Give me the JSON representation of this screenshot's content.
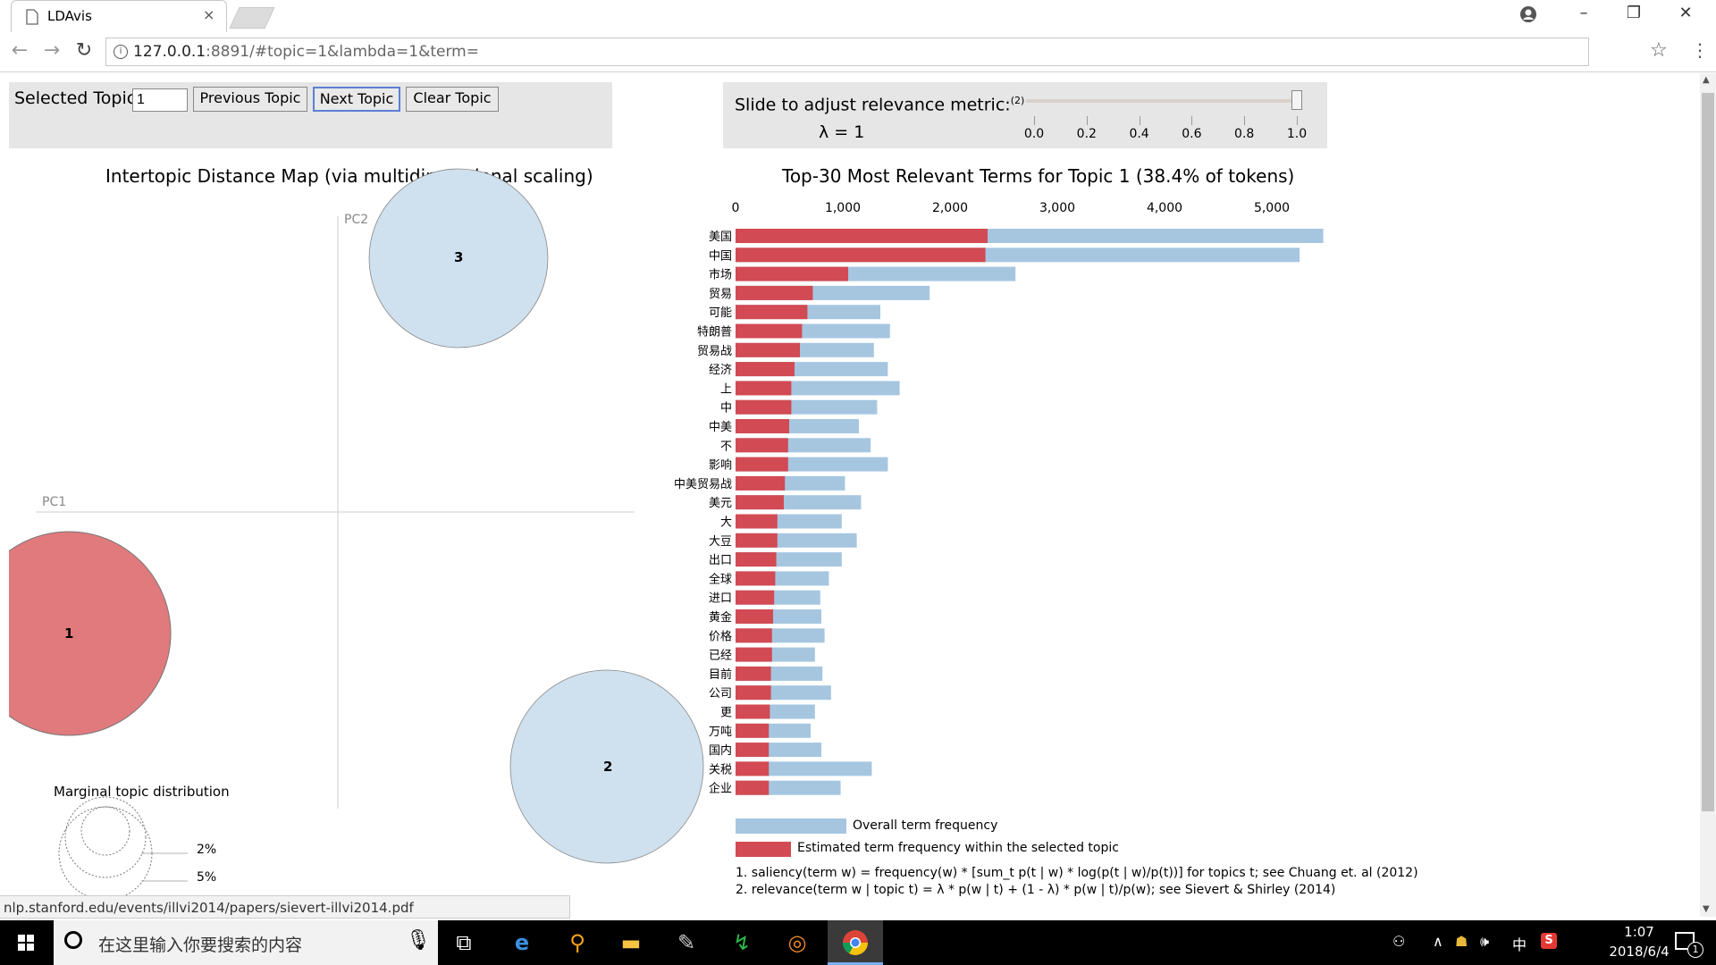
{
  "browser": {
    "tab_title": "LDAvis",
    "tab_close": "×",
    "url_host": "127.0.0.1",
    "url_rest": ":8891/#topic=1&lambda=1&term=",
    "window_controls": [
      "minimize-icon",
      "restore-icon",
      "close-icon"
    ]
  },
  "controls": {
    "selected_topic_label": "Selected Topic:",
    "selected_topic_value": "1",
    "prev_label": "Previous Topic",
    "next_label": "Next Topic",
    "clear_label": "Clear Topic",
    "slider_label": "Slide to adjust relevance metric:",
    "slider_footnote": "(2)",
    "lambda_text": "λ = 1",
    "slider_ticks": [
      "0.0",
      "0.2",
      "0.4",
      "0.6",
      "0.8",
      "1.0"
    ],
    "slider_value": 1.0
  },
  "mds": {
    "title": "Intertopic Distance Map (via multidimensional scaling)",
    "pc1": "PC1",
    "pc2": "PC2",
    "topics": [
      {
        "label": "1",
        "selected": true
      },
      {
        "label": "2",
        "selected": false
      },
      {
        "label": "3",
        "selected": false
      }
    ],
    "marginal_title": "Marginal topic distribution",
    "marginal_labels": [
      "2%",
      "5%"
    ]
  },
  "terms": {
    "title": "Top-30 Most Relevant Terms for Topic 1 (38.4% of tokens)",
    "ticks": [
      "0",
      "1,000",
      "2,000",
      "3,000",
      "4,000",
      "5,000"
    ],
    "legend_overall": "Overall term frequency",
    "legend_topic": "Estimated term frequency within the selected topic",
    "note1": "1. saliency(term w) = frequency(w) * [sum_t p(t | w) * log(p(t | w)/p(t))] for topics t; see Chuang et. al (2012)",
    "note2": "2. relevance(term w | topic t) = λ * p(w | t) + (1 - λ) * p(w | t)/p(w); see Sievert & Shirley (2014)"
  },
  "chart_data": {
    "type": "bar",
    "title": "Top-30 Most Relevant Terms for Topic 1 (38.4% of tokens)",
    "xlim": [
      0,
      5500
    ],
    "categories": [
      "美国",
      "中国",
      "市场",
      "贸易",
      "可能",
      "特朗普",
      "贸易战",
      "经济",
      "上",
      "中",
      "中美",
      "不",
      "影响",
      "中美贸易战",
      "美元",
      "大",
      "大豆",
      "出口",
      "全球",
      "进口",
      "黄金",
      "价格",
      "已经",
      "目前",
      "公司",
      "更",
      "万吨",
      "国内",
      "关税",
      "企业"
    ],
    "series": [
      {
        "name": "Overall term frequency",
        "values": [
          5480,
          5260,
          2610,
          1810,
          1350,
          1440,
          1290,
          1420,
          1530,
          1320,
          1150,
          1260,
          1420,
          1020,
          1170,
          990,
          1130,
          990,
          870,
          790,
          800,
          830,
          740,
          810,
          890,
          740,
          700,
          800,
          1270,
          980
        ]
      },
      {
        "name": "Estimated term frequency within the selected topic",
        "values": [
          2350,
          2330,
          1050,
          720,
          670,
          620,
          600,
          550,
          520,
          520,
          500,
          490,
          490,
          460,
          450,
          390,
          390,
          380,
          370,
          360,
          350,
          340,
          340,
          330,
          330,
          320,
          310,
          310,
          310,
          310
        ]
      }
    ],
    "colors": {
      "overall": "#a6c6e0",
      "topic": "#d24a53"
    }
  },
  "status_url": "nlp.stanford.edu/events/illvi2014/papers/sievert-illvi2014.pdf",
  "taskbar": {
    "search_placeholder": "在这里输入你要搜索的内容",
    "ime": "中",
    "time": "1:07",
    "date": "2018/6/4",
    "notification_count": "1"
  }
}
